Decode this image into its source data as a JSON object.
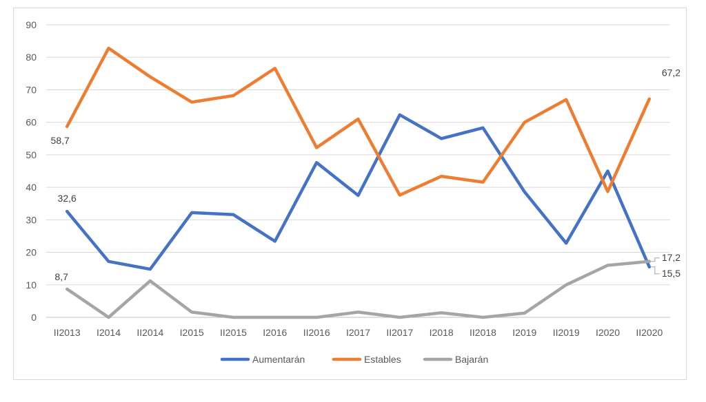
{
  "chart_data": {
    "type": "line",
    "categories": [
      "II2013",
      "I2014",
      "II2014",
      "I2015",
      "II2015",
      "I2016",
      "II2016",
      "I2017",
      "II2017",
      "I2018",
      "II2018",
      "I2019",
      "II2019",
      "I2020",
      "II2020"
    ],
    "ylim": [
      0,
      90
    ],
    "yticks": [
      0,
      10,
      20,
      30,
      40,
      50,
      60,
      70,
      80,
      90
    ],
    "ytick_labels": [
      "0",
      "10",
      "20",
      "30",
      "40",
      "50",
      "60",
      "70",
      "80",
      "90"
    ],
    "grid": true,
    "legend_position": "bottom",
    "series": [
      {
        "name": "Aumentarán",
        "color": "#4472c4",
        "values": [
          32.6,
          17.2,
          14.8,
          32.2,
          31.6,
          23.4,
          47.6,
          37.5,
          62.3,
          55.0,
          58.3,
          38.6,
          22.8,
          45.0,
          15.5
        ]
      },
      {
        "name": "Estables",
        "color": "#ed7d31",
        "values": [
          58.7,
          82.8,
          74.0,
          66.2,
          68.2,
          76.6,
          52.2,
          61.0,
          37.6,
          43.4,
          41.6,
          60.0,
          67.0,
          38.7,
          67.2
        ]
      },
      {
        "name": "Bajarán",
        "color": "#a5a5a5",
        "values": [
          8.7,
          0.0,
          11.2,
          1.6,
          0.0,
          0.0,
          0.0,
          1.6,
          0.0,
          1.4,
          0.0,
          1.3,
          10.0,
          16.0,
          17.2
        ]
      }
    ],
    "data_labels": [
      {
        "series": 0,
        "index": 0,
        "text": "32,6"
      },
      {
        "series": 1,
        "index": 0,
        "text": "58,7"
      },
      {
        "series": 2,
        "index": 0,
        "text": "8,7"
      },
      {
        "series": 1,
        "index": 14,
        "text": "67,2"
      },
      {
        "series": 2,
        "index": 14,
        "text": "17,2"
      },
      {
        "series": 0,
        "index": 14,
        "text": "15,5"
      }
    ]
  }
}
